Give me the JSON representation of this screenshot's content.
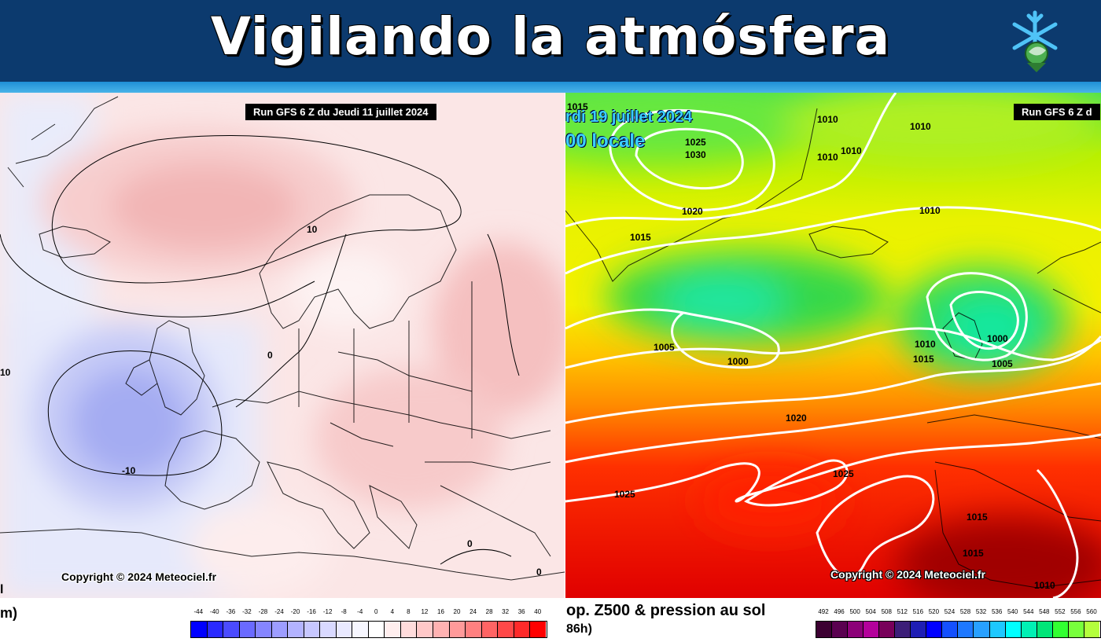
{
  "header": {
    "title": "Vigilando la atmósfera",
    "logo_icon": "snowflake-icon"
  },
  "left_map": {
    "run_label": "Run GFS 6 Z du Jeudi 11 juillet 2024",
    "copyright": "Copyright © 2024 Meteociel.fr",
    "contour_labels": [
      "10",
      "0",
      "-10",
      "10",
      "0",
      "0"
    ],
    "caption_fragment_1": "l",
    "caption_fragment_2": "m)",
    "legend_ticks": [
      "-44",
      "-40",
      "-36",
      "-32",
      "-28",
      "-24",
      "-20",
      "-16",
      "-12",
      "-8",
      "-4",
      "0",
      "4",
      "8",
      "12",
      "16",
      "20",
      "24",
      "28",
      "32",
      "36",
      "40"
    ],
    "legend_colors": [
      "#0000ff",
      "#2a2aff",
      "#4b4bff",
      "#6a6aff",
      "#8585ff",
      "#9d9dff",
      "#b3b3ff",
      "#c7c7ff",
      "#d9d9ff",
      "#e9e9ff",
      "#f7f7ff",
      "#ffffff",
      "#ffeeee",
      "#ffdcdc",
      "#ffc8c8",
      "#ffb2b2",
      "#ff9a9a",
      "#ff8080",
      "#ff6464",
      "#ff4848",
      "#ff2a2a",
      "#ff0000"
    ]
  },
  "right_map": {
    "run_label": "Run GFS 6 Z d",
    "date_overlay": "rdi 19 juillet 2024",
    "time_overlay": "00 locale",
    "copyright": "Copyright © 2024 Meteociel.fr",
    "isobar_labels": [
      "1015",
      "1025",
      "1030",
      "1010",
      "1010",
      "1010",
      "1010",
      "1020",
      "1015",
      "1010",
      "1005",
      "1000",
      "1010",
      "1000",
      "1015",
      "1005",
      "1020",
      "1025",
      "1025",
      "1015",
      "1015",
      "1010"
    ],
    "caption_line_1": "op. Z500 & pression au sol",
    "caption_line_2": "86h)",
    "legend_ticks": [
      "492",
      "496",
      "500",
      "504",
      "508",
      "512",
      "516",
      "520",
      "524",
      "528",
      "532",
      "536",
      "540",
      "544",
      "548",
      "552",
      "556",
      "560"
    ],
    "legend_colors": [
      "#3c0032",
      "#5a0050",
      "#8c0078",
      "#b4009b",
      "#78005a",
      "#3c1e78",
      "#1e1eb4",
      "#0000ff",
      "#1450ff",
      "#1e78ff",
      "#28a0ff",
      "#1ec8ff",
      "#00ffff",
      "#00f0b4",
      "#00e678",
      "#32ff32",
      "#78ff3c",
      "#b4ff3c"
    ]
  }
}
